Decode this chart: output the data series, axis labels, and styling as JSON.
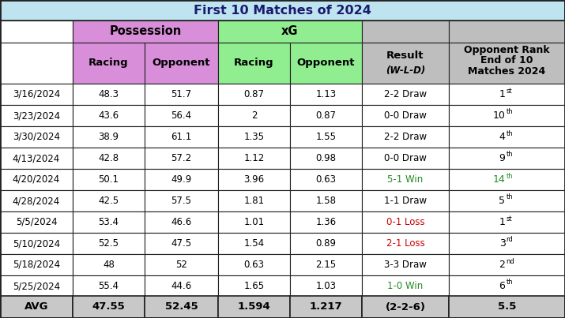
{
  "title": "First 10 Matches of 2024",
  "title_bg": "#BEE4F0",
  "possession_header_bg": "#D98EDA",
  "xg_header_bg": "#90EE90",
  "result_header_bg": "#BEBEBE",
  "rank_header_bg": "#BEBEBE",
  "avg_row_bg": "#C8C8C8",
  "dates": [
    "3/16/2024",
    "3/23/2024",
    "3/30/2024",
    "4/13/2024",
    "4/20/2024",
    "4/28/2024",
    "5/5/2024",
    "5/10/2024",
    "5/18/2024",
    "5/25/2024"
  ],
  "poss_racing": [
    "48.3",
    "43.6",
    "38.9",
    "42.8",
    "50.1",
    "42.5",
    "53.4",
    "52.5",
    "48",
    "55.4"
  ],
  "poss_opponent": [
    "51.7",
    "56.4",
    "61.1",
    "57.2",
    "49.9",
    "57.5",
    "46.6",
    "47.5",
    "52",
    "44.6"
  ],
  "xg_racing": [
    "0.87",
    "2",
    "1.35",
    "1.12",
    "3.96",
    "1.81",
    "1.01",
    "1.54",
    "0.63",
    "1.65"
  ],
  "xg_opponent": [
    "1.13",
    "0.87",
    "1.55",
    "0.98",
    "0.63",
    "1.58",
    "1.36",
    "0.89",
    "2.15",
    "1.03"
  ],
  "results": [
    "2-2 Draw",
    "0-0 Draw",
    "2-2 Draw",
    "0-0 Draw",
    "5-1 Win",
    "1-1 Draw",
    "0-1 Loss",
    "2-1 Loss",
    "3-3 Draw",
    "1-0 Win"
  ],
  "result_colors": [
    "black",
    "black",
    "black",
    "black",
    "#228B22",
    "black",
    "#CC0000",
    "#CC0000",
    "black",
    "#228B22"
  ],
  "rank_numbers": [
    "1",
    "10",
    "4",
    "9",
    "14",
    "5",
    "1",
    "3",
    "2",
    "6"
  ],
  "rank_supers": [
    "st",
    "th",
    "th",
    "th",
    "th",
    "th",
    "st",
    "rd",
    "nd",
    "th"
  ],
  "rank_colors": [
    "black",
    "black",
    "black",
    "black",
    "#228B22",
    "black",
    "black",
    "black",
    "black",
    "black"
  ],
  "avg_poss_racing": "47.55",
  "avg_poss_opponent": "52.45",
  "avg_xg_racing": "1.594",
  "avg_xg_opponent": "1.217",
  "avg_result": "(2-2-6)",
  "avg_rank": "5.5"
}
